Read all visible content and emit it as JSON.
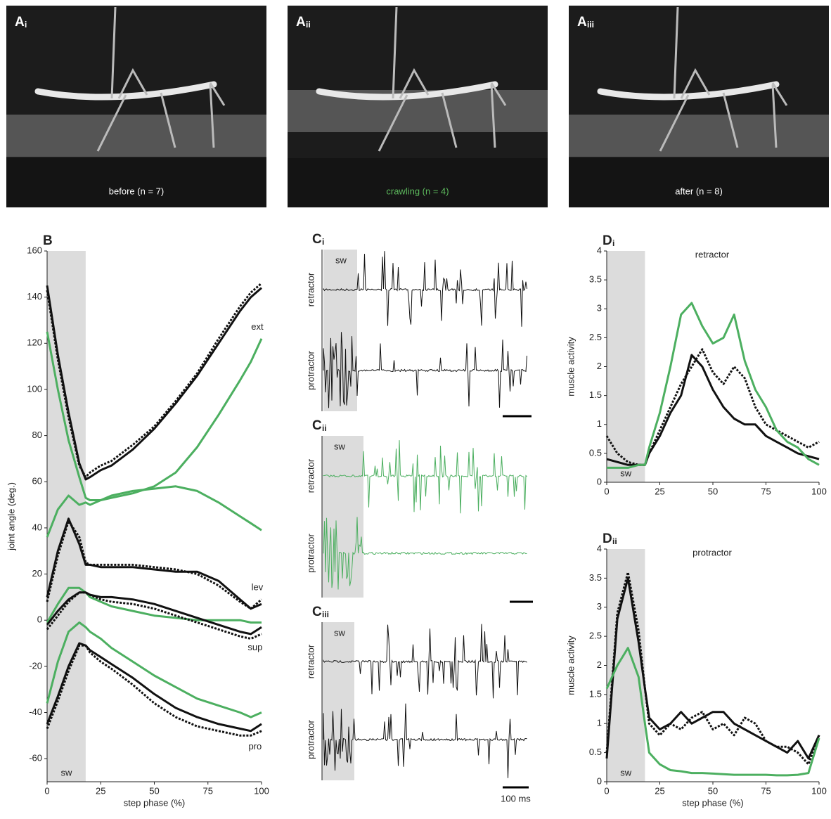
{
  "photos": [
    {
      "label": "A",
      "sub": "i",
      "caption": "before (n = 7)",
      "caption_color": "#ffffff"
    },
    {
      "label": "A",
      "sub": "ii",
      "caption": "crawling (n = 4)",
      "caption_color": "#5cb85c"
    },
    {
      "label": "A",
      "sub": "iii",
      "caption": "after (n = 8)",
      "caption_color": "#ffffff"
    }
  ],
  "recordings": [
    {
      "label": "C",
      "sub": "i",
      "span_label": "sw",
      "traces": [
        "retractor",
        "protractor"
      ],
      "color": "#111111"
    },
    {
      "label": "C",
      "sub": "ii",
      "span_label": "sw",
      "traces": [
        "retractor",
        "protractor"
      ],
      "color": "#4caf60"
    },
    {
      "label": "C",
      "sub": "iii",
      "span_label": "sw",
      "traces": [
        "retractor",
        "protractor"
      ],
      "color": "#111111",
      "scale_label": "100 ms"
    }
  ],
  "chart_data": [
    {
      "type": "line",
      "label": "B",
      "ylabel": "joint angle (deg.)",
      "xlabel": "step phase (%)",
      "xlim": [
        0,
        100
      ],
      "ylim": [
        -70,
        160
      ],
      "xticks": [
        0,
        25,
        50,
        75,
        100
      ],
      "yticks": [
        -60,
        -40,
        -20,
        0,
        20,
        40,
        60,
        80,
        100,
        120,
        140,
        160
      ],
      "span": {
        "x": [
          0,
          18
        ],
        "label": "sw"
      },
      "x": [
        0,
        5,
        10,
        15,
        18,
        20,
        25,
        30,
        40,
        50,
        60,
        70,
        80,
        90,
        95,
        100
      ],
      "series": [
        {
          "color": "#111111",
          "style": "solid",
          "values": [
            145,
            115,
            90,
            68,
            61,
            62,
            65,
            67,
            74,
            83,
            94,
            106,
            120,
            134,
            140,
            144
          ]
        },
        {
          "color": "#111111",
          "style": "dotted",
          "values": [
            143,
            113,
            88,
            67,
            62,
            64,
            67,
            69,
            76,
            84,
            95,
            107,
            122,
            136,
            142,
            146
          ]
        },
        {
          "color": "#4caf60",
          "style": "solid",
          "values": [
            125,
            100,
            78,
            62,
            53,
            52,
            52,
            53,
            55,
            58,
            64,
            75,
            89,
            104,
            112,
            122
          ]
        },
        {
          "color": "#4caf60",
          "style": "solid",
          "values": [
            36,
            48,
            54,
            50,
            51,
            50,
            52,
            54,
            56,
            57,
            58,
            56,
            51,
            45,
            42,
            39
          ]
        },
        {
          "color": "#111111",
          "style": "solid",
          "values": [
            10,
            30,
            44,
            33,
            24,
            24,
            23,
            23,
            23,
            22,
            21,
            21,
            17,
            9,
            5,
            7
          ]
        },
        {
          "color": "#111111",
          "style": "dotted",
          "values": [
            8,
            28,
            43,
            36,
            25,
            24,
            24,
            24,
            24,
            23,
            22,
            20,
            15,
            8,
            5,
            9
          ]
        },
        {
          "color": "#4caf60",
          "style": "solid",
          "values": [
            -1,
            7,
            14,
            14,
            12,
            10,
            8,
            6,
            4,
            2,
            1,
            0,
            0,
            0,
            -1,
            -1
          ]
        },
        {
          "color": "#111111",
          "style": "solid",
          "values": [
            -2,
            4,
            9,
            12,
            12,
            11,
            10,
            10,
            9,
            7,
            4,
            1,
            -2,
            -5,
            -6,
            -3
          ]
        },
        {
          "color": "#111111",
          "style": "dotted",
          "values": [
            -4,
            2,
            8,
            12,
            12,
            11,
            9,
            8,
            7,
            5,
            2,
            -1,
            -4,
            -7,
            -8,
            -6
          ]
        },
        {
          "color": "#4caf60",
          "style": "solid",
          "values": [
            -36,
            -18,
            -5,
            -1,
            -3,
            -5,
            -8,
            -12,
            -18,
            -24,
            -29,
            -34,
            -37,
            -40,
            -42,
            -40
          ]
        },
        {
          "color": "#111111",
          "style": "solid",
          "values": [
            -45,
            -33,
            -20,
            -10,
            -11,
            -13,
            -16,
            -19,
            -25,
            -32,
            -38,
            -42,
            -45,
            -47,
            -48,
            -45
          ]
        },
        {
          "color": "#111111",
          "style": "dotted",
          "values": [
            -47,
            -35,
            -22,
            -11,
            -11,
            -14,
            -18,
            -21,
            -28,
            -36,
            -42,
            -46,
            -48,
            -50,
            -50,
            -48
          ]
        }
      ],
      "annotations": [
        {
          "text": "ext",
          "x": 98,
          "y": 127
        },
        {
          "text": "lev",
          "x": 98,
          "y": 14
        },
        {
          "text": "sup",
          "x": 97,
          "y": -12
        },
        {
          "text": "pro",
          "x": 97,
          "y": -55
        }
      ]
    },
    {
      "type": "line",
      "label": "D",
      "sub": "i",
      "title": "retractor",
      "ylabel": "muscle activity",
      "xlim": [
        0,
        100
      ],
      "ylim": [
        0,
        4
      ],
      "xticks": [
        0,
        25,
        50,
        75,
        100
      ],
      "yticks": [
        0,
        0.5,
        1,
        1.5,
        2,
        2.5,
        3,
        3.5,
        4
      ],
      "span": {
        "x": [
          0,
          18
        ],
        "label": "sw"
      },
      "x": [
        0,
        5,
        10,
        15,
        18,
        20,
        25,
        30,
        35,
        40,
        45,
        50,
        55,
        60,
        65,
        70,
        75,
        80,
        85,
        90,
        95,
        100
      ],
      "series": [
        {
          "color": "#111111",
          "style": "solid",
          "values": [
            0.4,
            0.35,
            0.3,
            0.3,
            0.3,
            0.5,
            0.8,
            1.2,
            1.5,
            2.2,
            2.0,
            1.6,
            1.3,
            1.1,
            1.0,
            1.0,
            0.8,
            0.7,
            0.6,
            0.5,
            0.45,
            0.4
          ]
        },
        {
          "color": "#111111",
          "style": "dotted",
          "values": [
            0.8,
            0.5,
            0.35,
            0.3,
            0.3,
            0.5,
            0.9,
            1.3,
            1.7,
            2.0,
            2.3,
            1.9,
            1.7,
            2.0,
            1.8,
            1.3,
            1.0,
            0.9,
            0.8,
            0.7,
            0.6,
            0.7
          ]
        },
        {
          "color": "#4caf60",
          "style": "solid",
          "values": [
            0.25,
            0.25,
            0.25,
            0.3,
            0.3,
            0.6,
            1.2,
            2.0,
            2.9,
            3.1,
            2.7,
            2.4,
            2.5,
            2.9,
            2.1,
            1.6,
            1.3,
            0.9,
            0.7,
            0.6,
            0.4,
            0.3
          ]
        }
      ]
    },
    {
      "type": "line",
      "label": "D",
      "sub": "ii",
      "title": "protractor",
      "ylabel": "muscle activity",
      "xlabel": "step phase (%)",
      "xlim": [
        0,
        100
      ],
      "ylim": [
        0,
        4
      ],
      "xticks": [
        0,
        25,
        50,
        75,
        100
      ],
      "yticks": [
        0,
        0.5,
        1,
        1.5,
        2,
        2.5,
        3,
        3.5,
        4
      ],
      "span": {
        "x": [
          0,
          18
        ],
        "label": "sw"
      },
      "x": [
        0,
        5,
        10,
        15,
        18,
        20,
        25,
        30,
        35,
        40,
        45,
        50,
        55,
        60,
        65,
        70,
        75,
        80,
        85,
        90,
        95,
        100
      ],
      "series": [
        {
          "color": "#111111",
          "style": "solid",
          "values": [
            0.4,
            2.8,
            3.5,
            2.4,
            1.6,
            1.1,
            0.9,
            1.0,
            1.2,
            1.0,
            1.1,
            1.2,
            1.2,
            1.0,
            0.9,
            0.8,
            0.7,
            0.6,
            0.5,
            0.7,
            0.4,
            0.8
          ]
        },
        {
          "color": "#111111",
          "style": "dotted",
          "values": [
            0.5,
            2.9,
            3.6,
            2.6,
            1.6,
            1.0,
            0.8,
            1.0,
            0.9,
            1.1,
            1.2,
            0.9,
            1.0,
            0.8,
            1.1,
            1.0,
            0.7,
            0.6,
            0.6,
            0.5,
            0.3,
            0.8
          ]
        },
        {
          "color": "#4caf60",
          "style": "solid",
          "values": [
            1.6,
            2.0,
            2.3,
            1.8,
            1.0,
            0.5,
            0.3,
            0.2,
            0.18,
            0.15,
            0.15,
            0.14,
            0.13,
            0.12,
            0.12,
            0.12,
            0.12,
            0.11,
            0.11,
            0.12,
            0.15,
            0.75
          ]
        }
      ]
    }
  ]
}
